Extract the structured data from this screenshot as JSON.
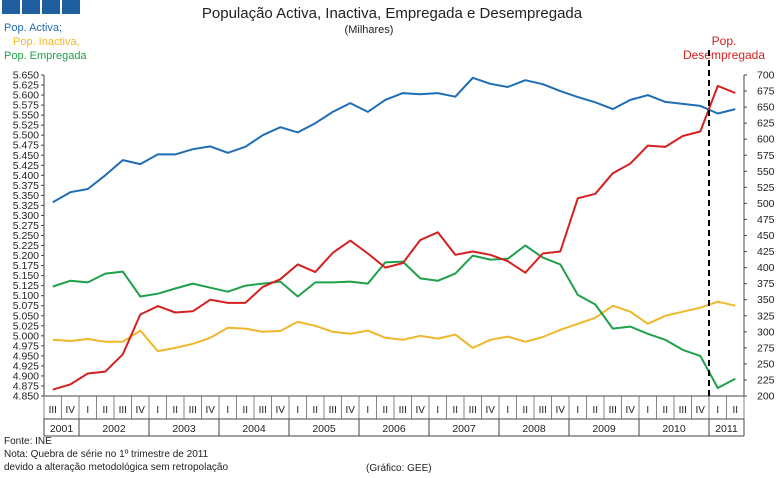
{
  "chart_data": {
    "type": "line",
    "title": "População Activa, Inactiva, Empregada e Desempregada",
    "subtitle": "(Milhares)",
    "legend_left": [
      "Pop. Activa;",
      "Pop. Inactiva,",
      "Pop. Empregada"
    ],
    "legend_right": [
      "Pop.",
      "Desempregada"
    ],
    "quarter_labels": [
      "III",
      "IV",
      "I",
      "II",
      "III",
      "IV",
      "I",
      "II",
      "III",
      "IV",
      "I",
      "II",
      "III",
      "IV",
      "I",
      "II",
      "III",
      "IV",
      "I",
      "II",
      "III",
      "IV",
      "I",
      "II",
      "III",
      "IV",
      "I",
      "II",
      "III",
      "IV",
      "I",
      "II",
      "III",
      "IV",
      "I",
      "II",
      "III",
      "IV",
      "I",
      "II"
    ],
    "year_labels": [
      {
        "label": "2001",
        "start": 0,
        "end": 2
      },
      {
        "label": "2002",
        "start": 2,
        "end": 6
      },
      {
        "label": "2003",
        "start": 6,
        "end": 10
      },
      {
        "label": "2004",
        "start": 10,
        "end": 14
      },
      {
        "label": "2005",
        "start": 14,
        "end": 18
      },
      {
        "label": "2006",
        "start": 18,
        "end": 22
      },
      {
        "label": "2007",
        "start": 22,
        "end": 26
      },
      {
        "label": "2008",
        "start": 26,
        "end": 30
      },
      {
        "label": "2009",
        "start": 30,
        "end": 34
      },
      {
        "label": "2010",
        "start": 34,
        "end": 38
      },
      {
        "label": "2011",
        "start": 38,
        "end": 40
      }
    ],
    "left_axis": {
      "min": 4850,
      "max": 5650,
      "step": 25,
      "tick_labels": [
        "4.850",
        "4.875",
        "4.900",
        "4.925",
        "4.950",
        "4.975",
        "5.000",
        "5.025",
        "5.050",
        "5.075",
        "5.100",
        "5.125",
        "5.150",
        "5.175",
        "5.200",
        "5.225",
        "5.250",
        "5.275",
        "5.300",
        "5.325",
        "5.350",
        "5.375",
        "5.400",
        "5.425",
        "5.450",
        "5.475",
        "5.500",
        "5.525",
        "5.550",
        "5.575",
        "5.600",
        "5.625",
        "5.650"
      ]
    },
    "right_axis": {
      "min": 200,
      "max": 700,
      "step": 25,
      "tick_labels": [
        "200",
        "225",
        "250",
        "275",
        "300",
        "325",
        "350",
        "375",
        "400",
        "425",
        "450",
        "475",
        "500",
        "525",
        "550",
        "575",
        "600",
        "625",
        "650",
        "675",
        "700"
      ]
    },
    "break_after_index": 37,
    "series": [
      {
        "name": "Pop. Activa",
        "axis": "left",
        "color": "#1f6db5",
        "values": [
          5333,
          5358,
          5366,
          5400,
          5438,
          5428,
          5452,
          5452,
          5465,
          5472,
          5456,
          5471,
          5500,
          5520,
          5507,
          5530,
          5558,
          5580,
          5558,
          5588,
          5605,
          5602,
          5605,
          5596,
          5643,
          5628,
          5620,
          5637,
          5627,
          5610,
          5595,
          5582,
          5565,
          5588,
          5600,
          5583,
          5578,
          5573,
          5554,
          5565
        ]
      },
      {
        "name": "Pop. Inactiva",
        "axis": "left",
        "color": "#f0b72a",
        "values": [
          4990,
          4987,
          4992,
          4985,
          4985,
          5013,
          4962,
          4970,
          4980,
          4995,
          5020,
          5018,
          5010,
          5012,
          5035,
          5025,
          5010,
          5005,
          5013,
          4995,
          4990,
          5000,
          4993,
          5003,
          4970,
          4990,
          4998,
          4985,
          4997,
          5015,
          5030,
          5045,
          5075,
          5060,
          5030,
          5050,
          5060,
          5070,
          5085,
          5075
        ]
      },
      {
        "name": "Pop. Empregada",
        "axis": "left",
        "color": "#1fa04a",
        "values": [
          5123,
          5137,
          5133,
          5155,
          5160,
          5098,
          5105,
          5118,
          5130,
          5120,
          5110,
          5125,
          5130,
          5135,
          5098,
          5133,
          5133,
          5135,
          5130,
          5183,
          5185,
          5143,
          5137,
          5155,
          5200,
          5190,
          5192,
          5225,
          5195,
          5178,
          5102,
          5078,
          5018,
          5023,
          5005,
          4990,
          4965,
          4950,
          4870,
          4893
        ]
      },
      {
        "name": "Pop. Desempregada",
        "axis": "right",
        "color": "#d42020",
        "values": [
          210,
          218,
          235,
          238,
          265,
          327,
          340,
          330,
          332,
          350,
          345,
          345,
          370,
          382,
          405,
          393,
          423,
          442,
          422,
          400,
          407,
          443,
          455,
          420,
          425,
          420,
          410,
          392,
          422,
          425,
          508,
          515,
          547,
          562,
          590,
          588,
          605,
          612,
          683,
          672
        ]
      }
    ]
  },
  "footer": {
    "source": "Fonte: INE",
    "note_line1": "Nota: Quebra de série no 1º trimestre de 2011",
    "note_line2": "devido a alteração metodológica sem retropolação",
    "credit": "(Gráfico: GEE)"
  }
}
